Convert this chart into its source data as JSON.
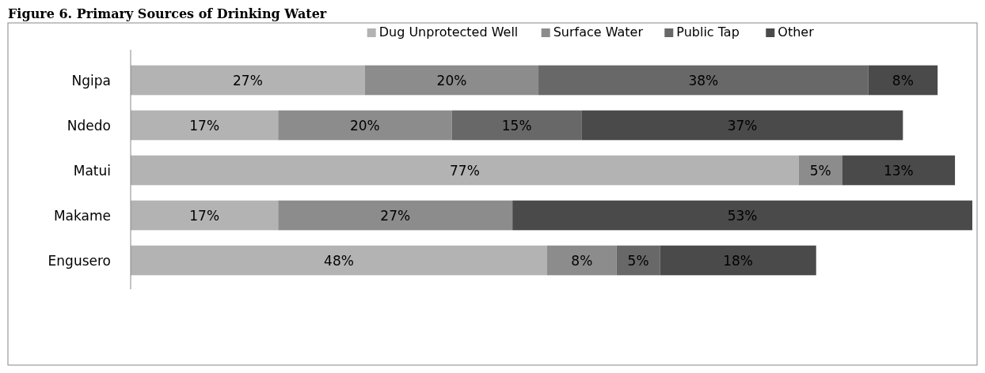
{
  "chart_data": {
    "type": "bar",
    "title": "Figure 6. Primary Sources of Drinking Water",
    "orientation": "horizontal",
    "stacked": true,
    "categories": [
      "Ngipa",
      "Ndedo",
      "Matui",
      "Makame",
      "Engusero"
    ],
    "series": [
      {
        "name": "Dug Unprotected Well",
        "color": "#b3b3b3",
        "values": [
          27,
          17,
          77,
          17,
          48
        ],
        "value_labels": [
          "27%",
          "17%",
          "77%",
          "17%",
          "48%"
        ]
      },
      {
        "name": "Surface Water",
        "color": "#8c8c8c",
        "values": [
          20,
          20,
          5,
          27,
          8
        ],
        "value_labels": [
          "20%",
          "20%",
          "5%",
          "27%",
          "8%"
        ]
      },
      {
        "name": "Public Tap",
        "color": "#686868",
        "values": [
          38,
          15,
          null,
          null,
          5
        ],
        "value_labels": [
          "38%",
          "15%",
          null,
          null,
          "5%"
        ]
      },
      {
        "name": "Other",
        "color": "#4a4a4a",
        "values": [
          8,
          37,
          13,
          53,
          18
        ],
        "value_labels": [
          "8%",
          "37%",
          "13%",
          "53%",
          "18%"
        ]
      }
    ],
    "legend": "top",
    "tick_labels": "y"
  }
}
